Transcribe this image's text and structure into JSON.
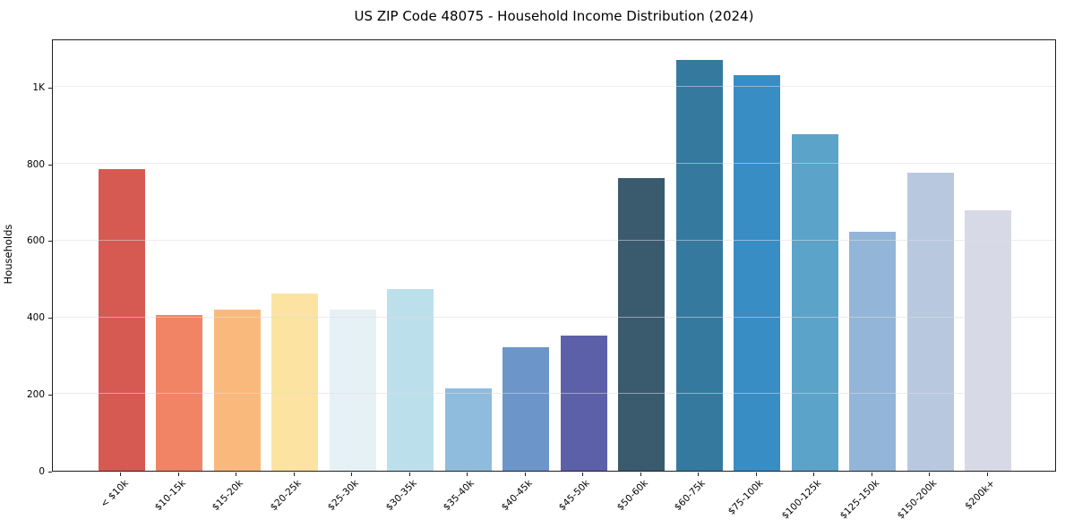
{
  "chart_data": {
    "type": "bar",
    "title": "US ZIP Code 48075 - Household Income Distribution (2024)",
    "xlabel": "",
    "ylabel": "Households",
    "categories": [
      "< $10k",
      "$10-15k",
      "$15-20k",
      "$20-25k",
      "$25-30k",
      "$30-35k",
      "$35-40k",
      "$40-45k",
      "$45-50k",
      "$50-60k",
      "$60-75k",
      "$75-100k",
      "$100-125k",
      "$125-150k",
      "$150-200k",
      "$200k+"
    ],
    "values": [
      787,
      407,
      421,
      462,
      420,
      474,
      215,
      322,
      353,
      763,
      1072,
      1031,
      877,
      623,
      777,
      678
    ],
    "bar_colors": [
      "#d65a52",
      "#f08465",
      "#fab97c",
      "#fde3a2",
      "#e6f1f5",
      "#bcdfec",
      "#8fbcdc",
      "#6c95c9",
      "#5c60a9",
      "#3a5a6e",
      "#35799f",
      "#398dc5",
      "#5ba3c9",
      "#92b5d8",
      "#b7c8df",
      "#d7d9e7"
    ],
    "y_ticks": [
      {
        "value": 0,
        "label": "0"
      },
      {
        "value": 200,
        "label": "200"
      },
      {
        "value": 400,
        "label": "400"
      },
      {
        "value": 600,
        "label": "600"
      },
      {
        "value": 800,
        "label": "800"
      },
      {
        "value": 1000,
        "label": "1K"
      }
    ],
    "ylim": [
      0,
      1127
    ],
    "grid": "horizontal",
    "legend": "none",
    "colors": {
      "background": "#ffffff",
      "gridline": "#dcdce2",
      "spine": "#1f1f1f",
      "tick": "#1f1f1f",
      "text": "#000000"
    }
  }
}
